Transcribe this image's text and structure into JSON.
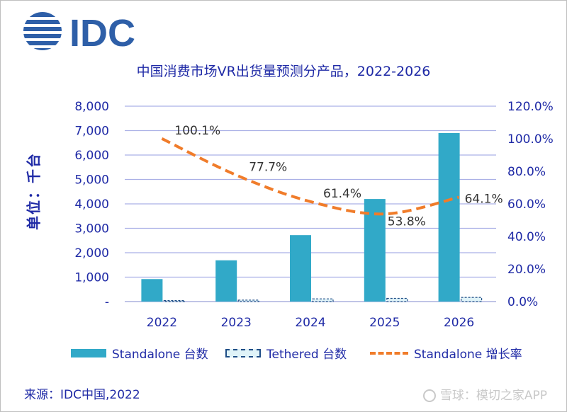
{
  "header": {
    "logo_text": "IDC"
  },
  "chart_data": {
    "type": "bar",
    "title": "中国消费市场VR出货量预测分产品，2022-2026",
    "ylabel": "单位：千台",
    "categories": [
      "2022",
      "2023",
      "2024",
      "2025",
      "2026"
    ],
    "series": [
      {
        "name": "Standalone 台数",
        "type": "bar",
        "axis": "left",
        "color": "#31a9c8",
        "values": [
          920,
          1690,
          2720,
          4200,
          6900
        ]
      },
      {
        "name": "Tethered 台数",
        "type": "bar",
        "axis": "left",
        "color": "#dff3f8",
        "values": [
          40,
          60,
          110,
          130,
          170
        ]
      },
      {
        "name": "Standalone 增长率",
        "type": "line",
        "axis": "right",
        "color": "#f07c2a",
        "values": [
          100.1,
          77.7,
          61.4,
          53.8,
          64.1
        ],
        "labels": [
          "100.1%",
          "77.7%",
          "61.4%",
          "53.8%",
          "64.1%"
        ]
      }
    ],
    "y_left": {
      "min": 0,
      "max": 8000,
      "ticks": [
        "-",
        "1,000",
        "2,000",
        "3,000",
        "4,000",
        "5,000",
        "6,000",
        "7,000",
        "8,000"
      ]
    },
    "y_right": {
      "min": 0,
      "max": 120,
      "ticks": [
        "0.0%",
        "20.0%",
        "40.0%",
        "60.0%",
        "80.0%",
        "100.0%",
        "120.0%"
      ]
    },
    "grid": true,
    "legend_position": "bottom"
  },
  "footer": {
    "source": "来源：IDC中国,2022",
    "watermark": "雪球：模切之家APP"
  }
}
